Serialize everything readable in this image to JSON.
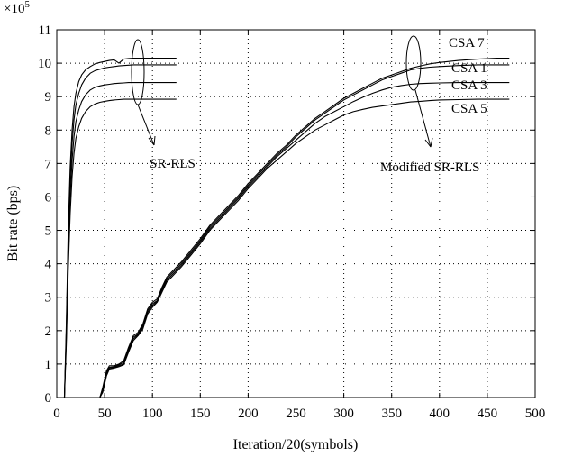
{
  "chart_data": {
    "type": "line",
    "title": "",
    "xlabel": "Iteration/20(symbols)",
    "ylabel": "Bit rate (bps)",
    "y_multiplier": "×10",
    "y_multiplier_exp": "5",
    "xlim": [
      0,
      500
    ],
    "ylim": [
      0,
      11
    ],
    "x_ticks": [
      0,
      50,
      100,
      150,
      200,
      250,
      300,
      350,
      400,
      450,
      500
    ],
    "y_ticks": [
      0,
      1,
      2,
      3,
      4,
      5,
      6,
      7,
      8,
      9,
      10,
      11
    ],
    "grid": "dotted",
    "legend": "none",
    "series_labels": [
      "CSA 7",
      "CSA 1",
      "CSA 3",
      "CSA 5"
    ],
    "annotations": [
      {
        "text": "SR-RLS"
      },
      {
        "text": "Modified SR-RLS"
      }
    ],
    "series": [
      {
        "group": "SR-RLS",
        "final": 10.15,
        "x": [
          0,
          8,
          10,
          12,
          14,
          16,
          18,
          20,
          23,
          26,
          30,
          35,
          40,
          45,
          50,
          55,
          60,
          65,
          70,
          75,
          80,
          90,
          100,
          110,
          120,
          125
        ],
        "y": [
          0,
          0,
          2.2,
          5.0,
          6.9,
          8.0,
          8.7,
          9.1,
          9.45,
          9.65,
          9.8,
          9.9,
          9.98,
          10.02,
          10.05,
          10.08,
          10.1,
          10.0,
          10.12,
          10.14,
          10.15,
          10.15,
          10.15,
          10.15,
          10.15,
          10.15
        ]
      },
      {
        "group": "SR-RLS",
        "final": 9.95,
        "x": [
          0,
          8,
          10,
          12,
          14,
          16,
          18,
          20,
          23,
          26,
          30,
          35,
          40,
          45,
          50,
          55,
          60,
          65,
          70,
          75,
          80,
          90,
          100,
          110,
          120,
          125
        ],
        "y": [
          0,
          0,
          2.0,
          4.6,
          6.5,
          7.6,
          8.3,
          8.75,
          9.1,
          9.35,
          9.55,
          9.7,
          9.78,
          9.82,
          9.86,
          9.88,
          9.9,
          9.92,
          9.93,
          9.94,
          9.95,
          9.95,
          9.95,
          9.95,
          9.95,
          9.95
        ]
      },
      {
        "group": "SR-RLS",
        "final": 9.42,
        "x": [
          0,
          8,
          10,
          12,
          14,
          16,
          18,
          20,
          23,
          26,
          30,
          35,
          40,
          45,
          50,
          55,
          60,
          65,
          70,
          75,
          80,
          90,
          100,
          110,
          120,
          125
        ],
        "y": [
          0,
          0,
          1.8,
          4.2,
          6.0,
          7.1,
          7.8,
          8.25,
          8.6,
          8.85,
          9.05,
          9.2,
          9.28,
          9.32,
          9.35,
          9.37,
          9.39,
          9.4,
          9.41,
          9.42,
          9.42,
          9.42,
          9.42,
          9.42,
          9.42,
          9.42
        ]
      },
      {
        "group": "SR-RLS",
        "final": 8.92,
        "x": [
          0,
          8,
          10,
          12,
          14,
          16,
          18,
          20,
          23,
          26,
          30,
          35,
          40,
          45,
          50,
          55,
          60,
          65,
          70,
          75,
          80,
          90,
          100,
          110,
          120,
          125
        ],
        "y": [
          0,
          0,
          1.6,
          3.8,
          5.5,
          6.6,
          7.3,
          7.75,
          8.1,
          8.35,
          8.55,
          8.7,
          8.78,
          8.83,
          8.86,
          8.88,
          8.9,
          8.91,
          8.92,
          8.92,
          8.92,
          8.92,
          8.92,
          8.92,
          8.92,
          8.92
        ]
      },
      {
        "group": "Modified SR-RLS",
        "name": "CSA 7",
        "x": [
          0,
          45,
          48,
          52,
          55,
          60,
          65,
          70,
          75,
          80,
          85,
          90,
          95,
          100,
          105,
          110,
          115,
          120,
          130,
          140,
          150,
          160,
          170,
          180,
          190,
          200,
          210,
          220,
          230,
          240,
          250,
          260,
          270,
          280,
          290,
          300,
          310,
          320,
          330,
          340,
          350,
          360,
          370,
          380,
          390,
          400,
          420,
          440,
          460,
          473
        ],
        "y": [
          0,
          0,
          0.3,
          0.8,
          0.95,
          0.95,
          1.0,
          1.1,
          1.5,
          1.85,
          1.95,
          2.2,
          2.65,
          2.85,
          2.95,
          3.3,
          3.6,
          3.75,
          4.05,
          4.4,
          4.75,
          5.15,
          5.45,
          5.75,
          6.05,
          6.4,
          6.7,
          7.0,
          7.3,
          7.55,
          7.85,
          8.1,
          8.35,
          8.55,
          8.75,
          8.95,
          9.1,
          9.25,
          9.4,
          9.55,
          9.65,
          9.75,
          9.85,
          9.92,
          9.98,
          10.02,
          10.08,
          10.12,
          10.15,
          10.15
        ]
      },
      {
        "group": "Modified SR-RLS",
        "name": "CSA 1",
        "x": [
          0,
          45,
          48,
          52,
          55,
          60,
          65,
          70,
          75,
          80,
          85,
          90,
          95,
          100,
          105,
          110,
          115,
          120,
          130,
          140,
          150,
          160,
          170,
          180,
          190,
          200,
          210,
          220,
          230,
          240,
          250,
          260,
          270,
          280,
          290,
          300,
          310,
          320,
          330,
          340,
          350,
          360,
          370,
          380,
          390,
          400,
          420,
          440,
          460,
          473
        ],
        "y": [
          0,
          0,
          0.25,
          0.75,
          0.9,
          0.92,
          0.98,
          1.05,
          1.45,
          1.8,
          1.9,
          2.15,
          2.6,
          2.8,
          2.9,
          3.25,
          3.55,
          3.7,
          4.0,
          4.35,
          4.7,
          5.1,
          5.4,
          5.7,
          6.0,
          6.35,
          6.65,
          6.95,
          7.25,
          7.5,
          7.8,
          8.05,
          8.3,
          8.5,
          8.7,
          8.9,
          9.05,
          9.2,
          9.35,
          9.5,
          9.6,
          9.7,
          9.8,
          9.85,
          9.88,
          9.9,
          9.93,
          9.95,
          9.95,
          9.95
        ]
      },
      {
        "group": "Modified SR-RLS",
        "name": "CSA 3",
        "x": [
          0,
          45,
          48,
          52,
          55,
          60,
          65,
          70,
          75,
          80,
          85,
          90,
          95,
          100,
          105,
          110,
          115,
          120,
          130,
          140,
          150,
          160,
          170,
          180,
          190,
          200,
          210,
          220,
          230,
          240,
          250,
          260,
          270,
          280,
          290,
          300,
          310,
          320,
          330,
          340,
          350,
          360,
          370,
          380,
          390,
          400,
          420,
          440,
          460,
          473
        ],
        "y": [
          0,
          0,
          0.2,
          0.7,
          0.88,
          0.9,
          0.95,
          1.0,
          1.4,
          1.75,
          1.88,
          2.1,
          2.55,
          2.75,
          2.88,
          3.2,
          3.5,
          3.65,
          3.95,
          4.3,
          4.65,
          5.05,
          5.35,
          5.65,
          5.95,
          6.3,
          6.6,
          6.9,
          7.2,
          7.45,
          7.7,
          7.95,
          8.2,
          8.4,
          8.55,
          8.7,
          8.85,
          8.98,
          9.1,
          9.2,
          9.28,
          9.33,
          9.37,
          9.39,
          9.4,
          9.41,
          9.42,
          9.42,
          9.42,
          9.42
        ]
      },
      {
        "group": "Modified SR-RLS",
        "name": "CSA 5",
        "x": [
          0,
          45,
          48,
          52,
          55,
          60,
          65,
          70,
          75,
          80,
          85,
          90,
          95,
          100,
          105,
          110,
          115,
          120,
          130,
          140,
          150,
          160,
          170,
          180,
          190,
          200,
          210,
          220,
          230,
          240,
          250,
          260,
          270,
          280,
          290,
          300,
          310,
          320,
          330,
          340,
          350,
          360,
          370,
          380,
          390,
          400,
          420,
          440,
          460,
          473
        ],
        "y": [
          0,
          0,
          0.15,
          0.65,
          0.85,
          0.88,
          0.92,
          0.98,
          1.35,
          1.7,
          1.85,
          2.05,
          2.5,
          2.7,
          2.85,
          3.15,
          3.45,
          3.6,
          3.9,
          4.25,
          4.6,
          5.0,
          5.3,
          5.6,
          5.9,
          6.25,
          6.55,
          6.85,
          7.1,
          7.35,
          7.6,
          7.8,
          8.0,
          8.15,
          8.3,
          8.45,
          8.55,
          8.62,
          8.68,
          8.72,
          8.76,
          8.8,
          8.84,
          8.86,
          8.88,
          8.9,
          8.91,
          8.92,
          8.92,
          8.92
        ]
      }
    ]
  }
}
